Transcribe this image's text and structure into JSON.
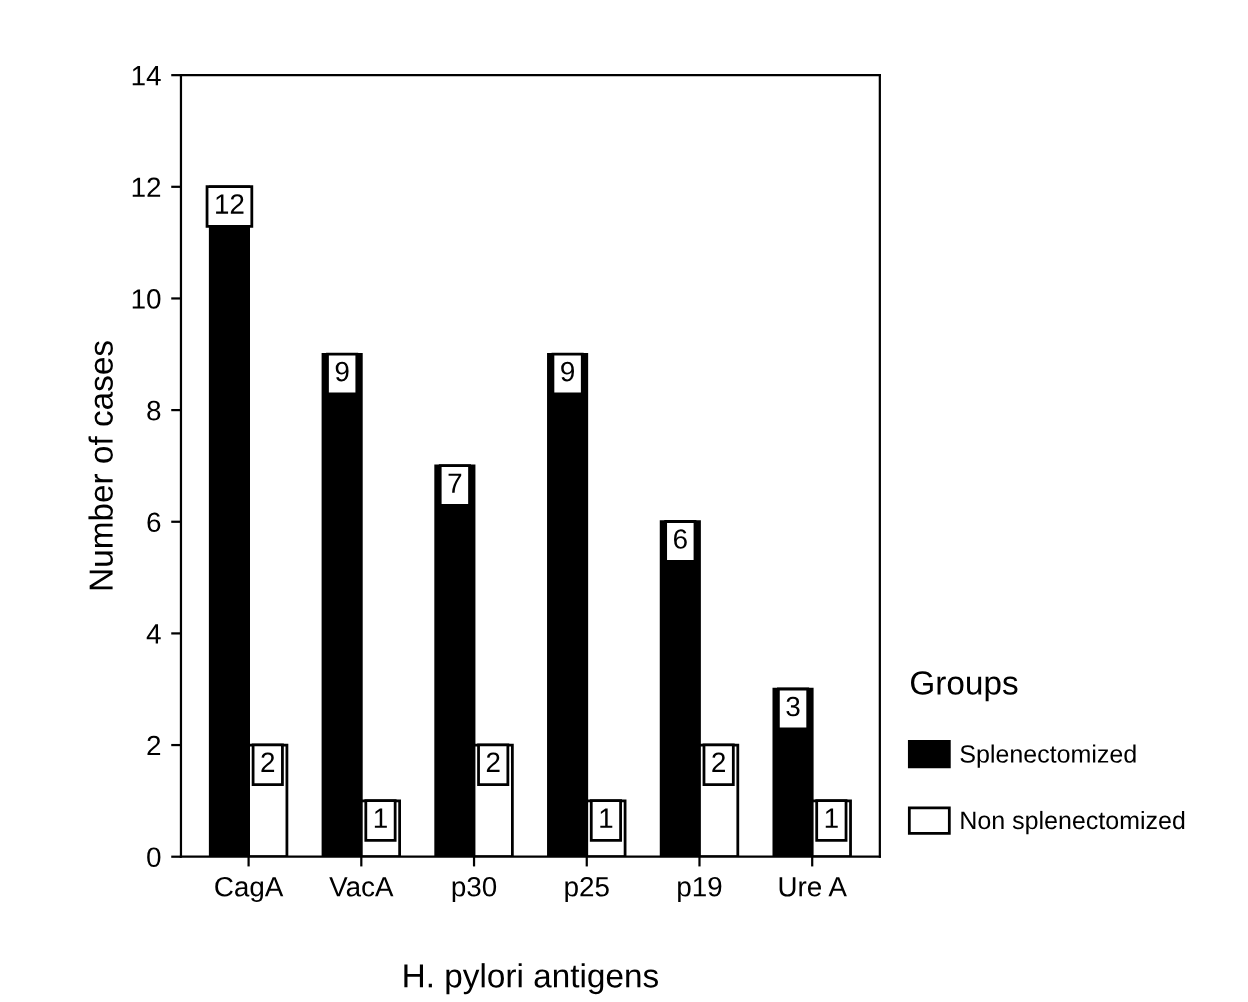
{
  "chart_data": {
    "type": "bar",
    "xlabel": "H. pylori antigens",
    "ylabel": "Number of cases",
    "legend_title": "Groups",
    "categories": [
      "CagA",
      "VacA",
      "p30",
      "p25",
      "p19",
      "Ure A"
    ],
    "series": [
      {
        "name": "Splenectomized",
        "color": "#000000",
        "values": [
          12,
          9,
          7,
          9,
          6,
          3
        ]
      },
      {
        "name": "Non splenectomized",
        "color": "#ffffff",
        "values": [
          2,
          1,
          2,
          1,
          2,
          1
        ]
      }
    ],
    "ylim": [
      0,
      14
    ],
    "yticks": [
      0,
      2,
      4,
      6,
      8,
      10,
      12,
      14
    ],
    "data_labels": true,
    "legend": "right",
    "grid": false
  }
}
